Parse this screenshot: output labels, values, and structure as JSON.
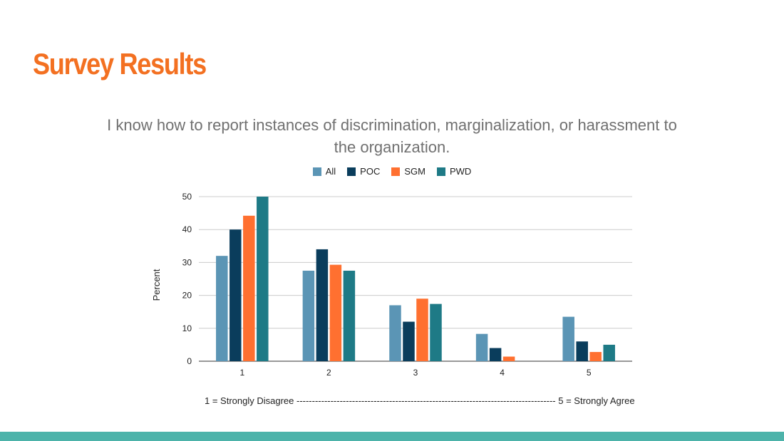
{
  "slide": {
    "title": "Survey Results",
    "footnote": "1 = Strongly Disagree ------------------------------------------------------------------------------------ 5 = Strongly Agree"
  },
  "colors": {
    "title": "#f37021",
    "bottom_bar": "#4db3aa"
  },
  "chart_data": {
    "type": "bar",
    "title": "I know how to report instances of discrimination, marginalization, or harassment to the organization.",
    "xlabel": "",
    "ylabel": "Percent",
    "ylim": [
      0,
      50
    ],
    "yticks": [
      0,
      10,
      20,
      30,
      40,
      50
    ],
    "grid": true,
    "legend_position": "top",
    "categories": [
      "1",
      "2",
      "3",
      "4",
      "5"
    ],
    "series": [
      {
        "name": "All",
        "color": "#5b95b5",
        "values": [
          32,
          27.5,
          17,
          8.3,
          13.5
        ]
      },
      {
        "name": "POC",
        "color": "#0a3d5c",
        "values": [
          40,
          34,
          12,
          4,
          6
        ]
      },
      {
        "name": "SGM",
        "color": "#ff7030",
        "values": [
          44.2,
          29.3,
          19,
          1.4,
          2.8
        ]
      },
      {
        "name": "PWD",
        "color": "#1e7a86",
        "values": [
          50,
          27.5,
          17.4,
          0,
          5
        ]
      }
    ]
  }
}
